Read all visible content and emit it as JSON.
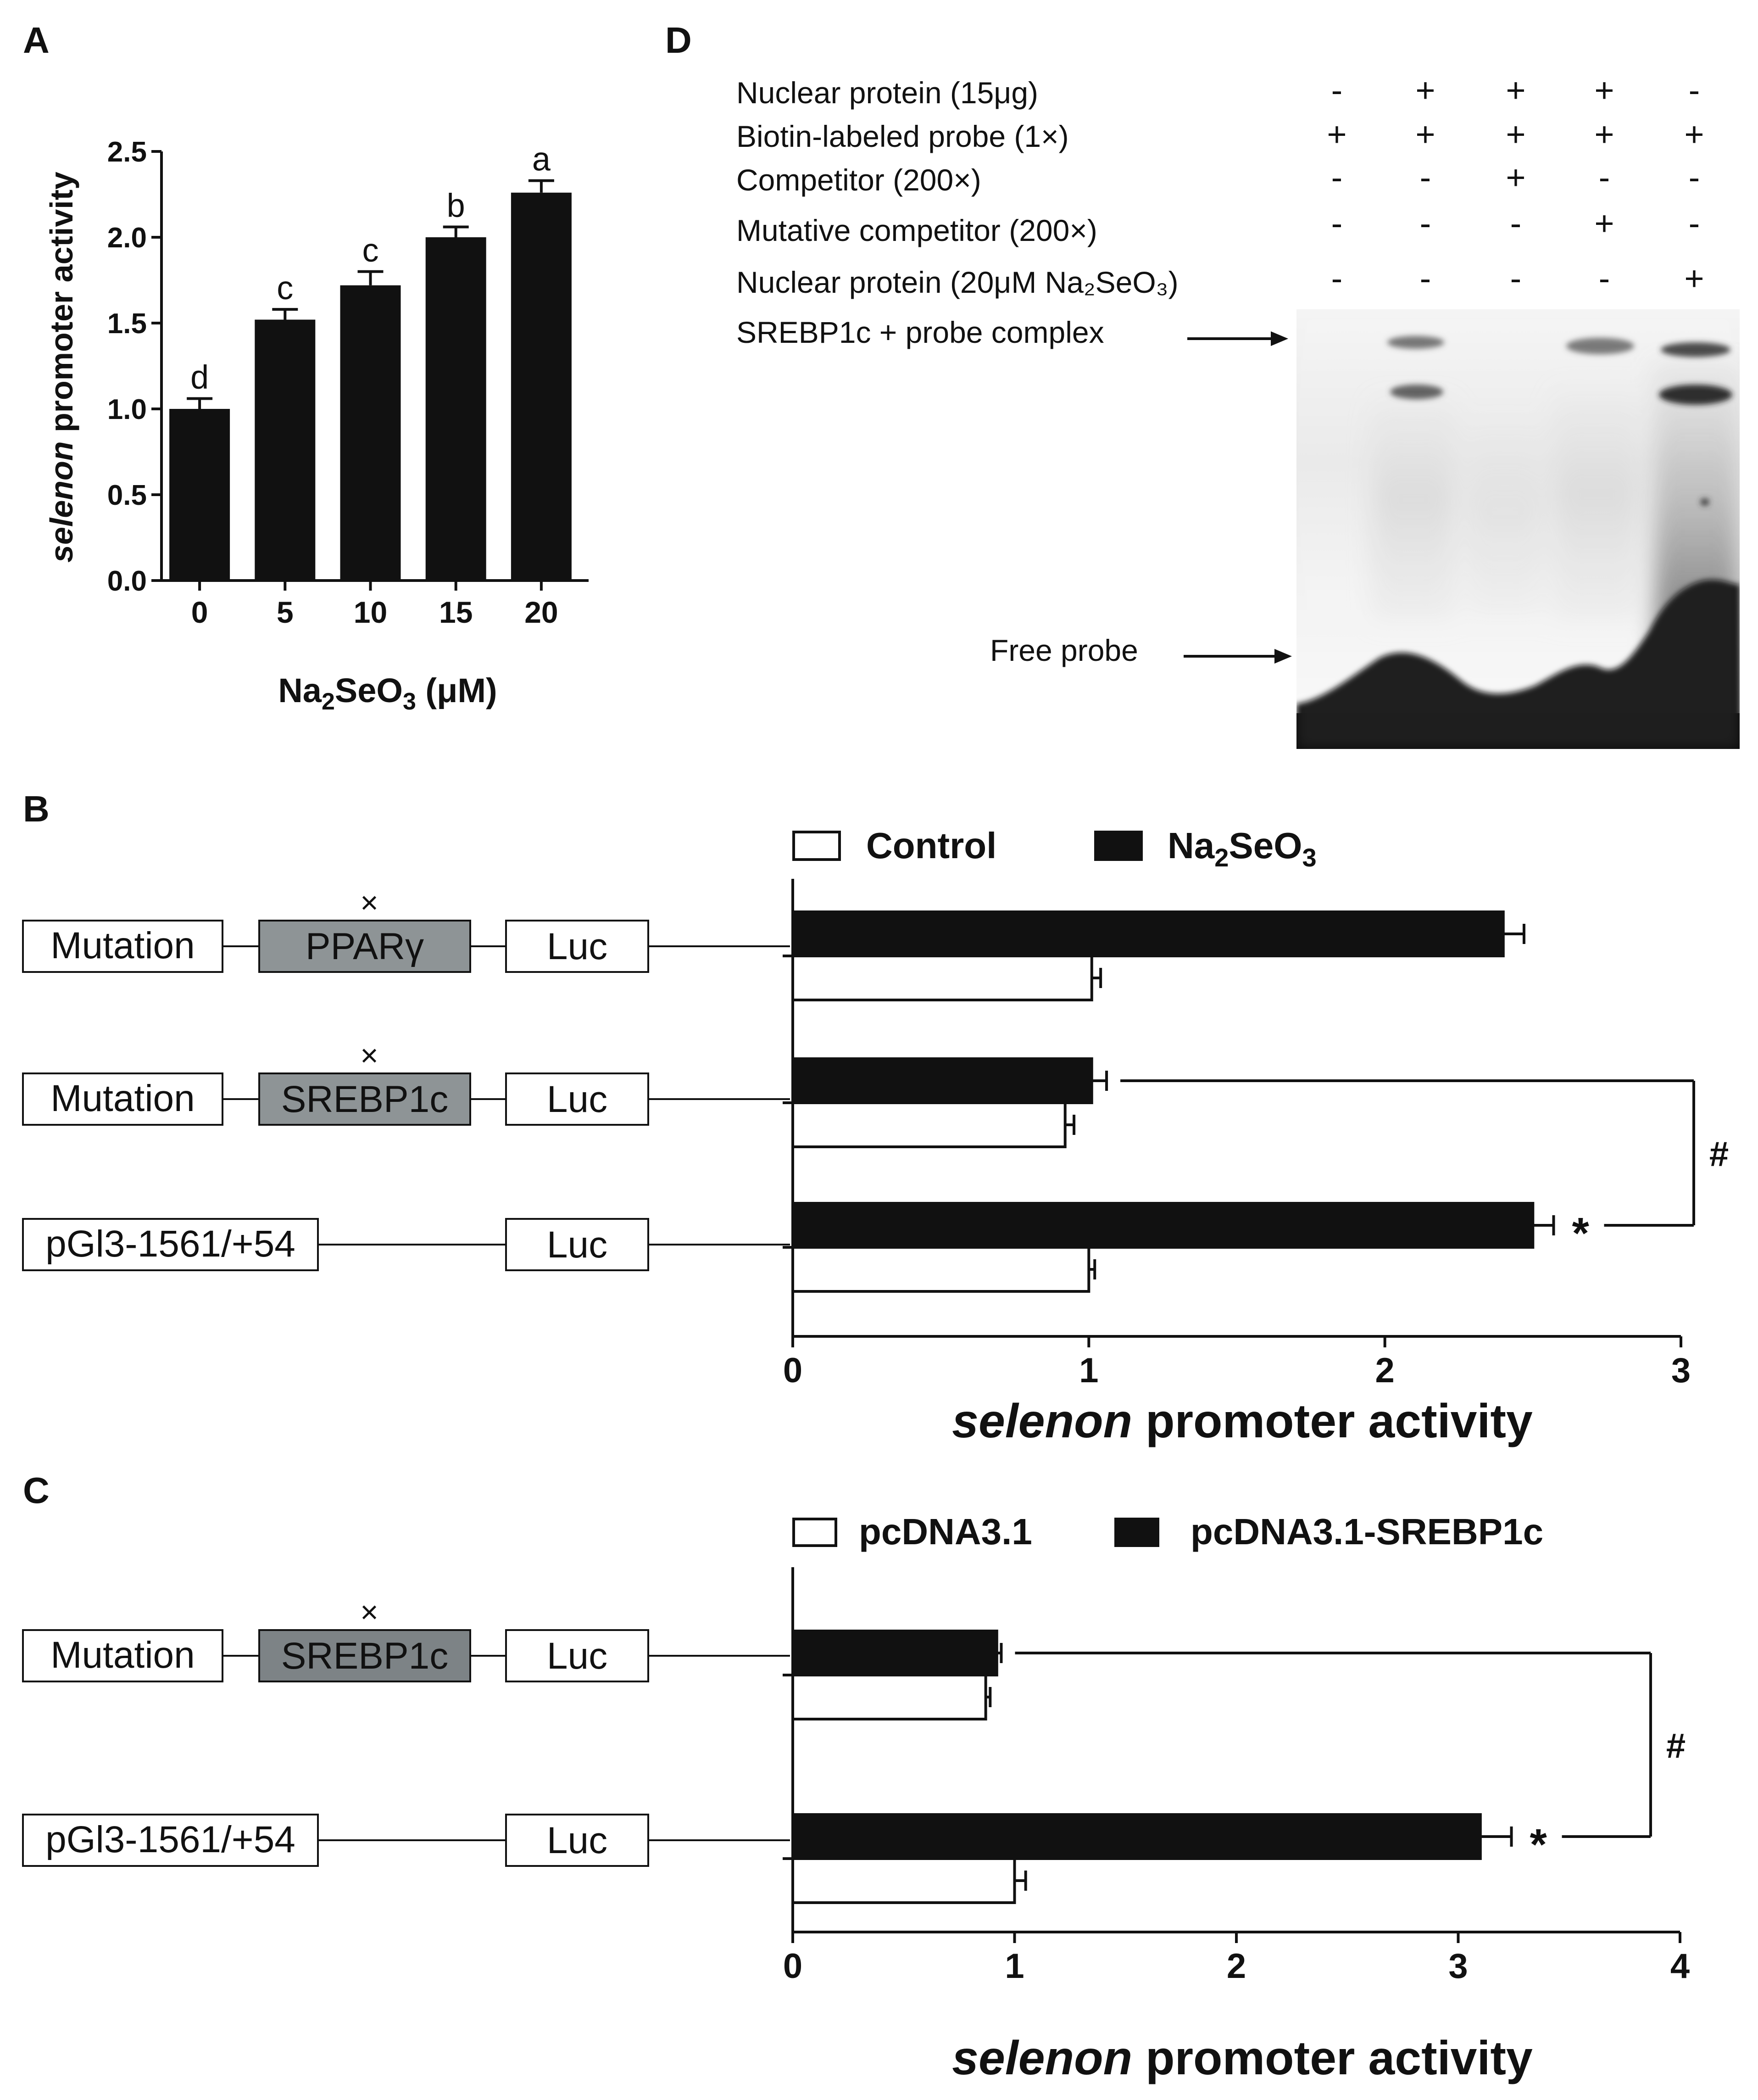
{
  "panels": [
    {
      "id": "A",
      "letter": "A",
      "chart_data": {
        "type": "bar",
        "categories": [
          "0",
          "5",
          "10",
          "15",
          "20"
        ],
        "values": [
          1.0,
          1.52,
          1.72,
          2.0,
          2.26
        ],
        "errors": [
          0.06,
          0.06,
          0.08,
          0.06,
          0.07
        ],
        "significance_letters": [
          "d",
          "c",
          "c",
          "b",
          "a"
        ],
        "ylabel_italic": "selenon",
        "ylabel_rest": " promoter activity",
        "xlabel_main": "Na",
        "xlabel_sub1": "2",
        "xlabel_mid": "SeO",
        "xlabel_sub2": "3",
        "xlabel_tail": " (μM)",
        "ylim": [
          0,
          2.5
        ],
        "yticks": [
          "0.0",
          "0.5",
          "1.0",
          "1.5",
          "2.0",
          "2.5"
        ],
        "bar_color": "#111111"
      }
    },
    {
      "id": "B",
      "letter": "B",
      "legend": [
        {
          "label": "Control",
          "fill": "#ffffff"
        },
        {
          "label_main": "Na",
          "label_sub1": "2",
          "label_mid": "SeO",
          "label_sub2": "3",
          "fill": "#111111"
        }
      ],
      "constructs": [
        {
          "box_label": "Mutation",
          "site_label": "PPARγ",
          "mutated_mark": "×",
          "luc_label": "Luc"
        },
        {
          "box_label": "Mutation",
          "site_label": "SREBP1c",
          "mutated_mark": "×",
          "luc_label": "Luc"
        },
        {
          "box_label": "pGl3-1561/+54",
          "site_label": "",
          "mutated_mark": "",
          "luc_label": "Luc"
        }
      ],
      "chart_data": {
        "type": "bar",
        "orientation": "horizontal",
        "categories": [
          "Mutation PPARγ",
          "Mutation SREBP1c",
          "pGl3-1561/+54"
        ],
        "series": [
          {
            "name": "Na2SeO3",
            "values": [
              2.4,
              1.01,
              2.5
            ],
            "errors": [
              0.07,
              0.05,
              0.07
            ]
          },
          {
            "name": "Control",
            "values": [
              1.01,
              0.92,
              1.0
            ],
            "errors": [
              0.03,
              0.03,
              0.02
            ]
          }
        ],
        "xlabel_italic": "selenon",
        "xlabel_rest": " promoter activity",
        "xlim": [
          0,
          3
        ],
        "xticks": [
          "0",
          "1",
          "2",
          "3"
        ],
        "annotations": {
          "star": "*",
          "hash": "#"
        }
      }
    },
    {
      "id": "C",
      "letter": "C",
      "legend": [
        {
          "label": "pcDNA3.1",
          "fill": "#ffffff"
        },
        {
          "label": "pcDNA3.1-SREBP1c",
          "fill": "#111111"
        }
      ],
      "constructs": [
        {
          "box_label": "Mutation",
          "site_label": "SREBP1c",
          "mutated_mark": "×",
          "luc_label": "Luc"
        },
        {
          "box_label": "pGl3-1561/+54",
          "site_label": "",
          "mutated_mark": "",
          "luc_label": "Luc"
        }
      ],
      "chart_data": {
        "type": "bar",
        "orientation": "horizontal",
        "categories": [
          "Mutation SREBP1c",
          "pGl3-1561/+54"
        ],
        "series": [
          {
            "name": "pcDNA3.1-SREBP1c",
            "values": [
              0.92,
              3.1
            ],
            "errors": [
              0.02,
              0.14
            ]
          },
          {
            "name": "pcDNA3.1",
            "values": [
              0.87,
              1.0
            ],
            "errors": [
              0.02,
              0.05
            ]
          }
        ],
        "xlabel_italic": "selenon",
        "xlabel_rest": " promoter activity",
        "xlim": [
          0,
          4
        ],
        "xticks": [
          "0",
          "1",
          "2",
          "3",
          "4"
        ],
        "annotations": {
          "star": "*",
          "hash": "#"
        }
      }
    },
    {
      "id": "D",
      "letter": "D",
      "rows": [
        {
          "label": "Nuclear protein (15μg)",
          "marks": [
            "-",
            "+",
            "+",
            "+",
            "-"
          ]
        },
        {
          "label": "Biotin-labeled probe (1×)",
          "marks": [
            "+",
            "+",
            "+",
            "+",
            "+"
          ]
        },
        {
          "label": "Competitor (200×)",
          "marks": [
            "-",
            "-",
            "+",
            "-",
            "-"
          ]
        },
        {
          "label": "Mutative competitor (200×)",
          "marks": [
            "-",
            "-",
            "-",
            "+",
            "-"
          ]
        },
        {
          "label": "Nuclear protein (20μM Na₂SeO₃)",
          "marks": [
            "-",
            "-",
            "-",
            "-",
            "+"
          ]
        }
      ],
      "arrows": [
        {
          "label": "SREBP1c + probe complex"
        },
        {
          "label": "Free probe"
        }
      ]
    }
  ]
}
